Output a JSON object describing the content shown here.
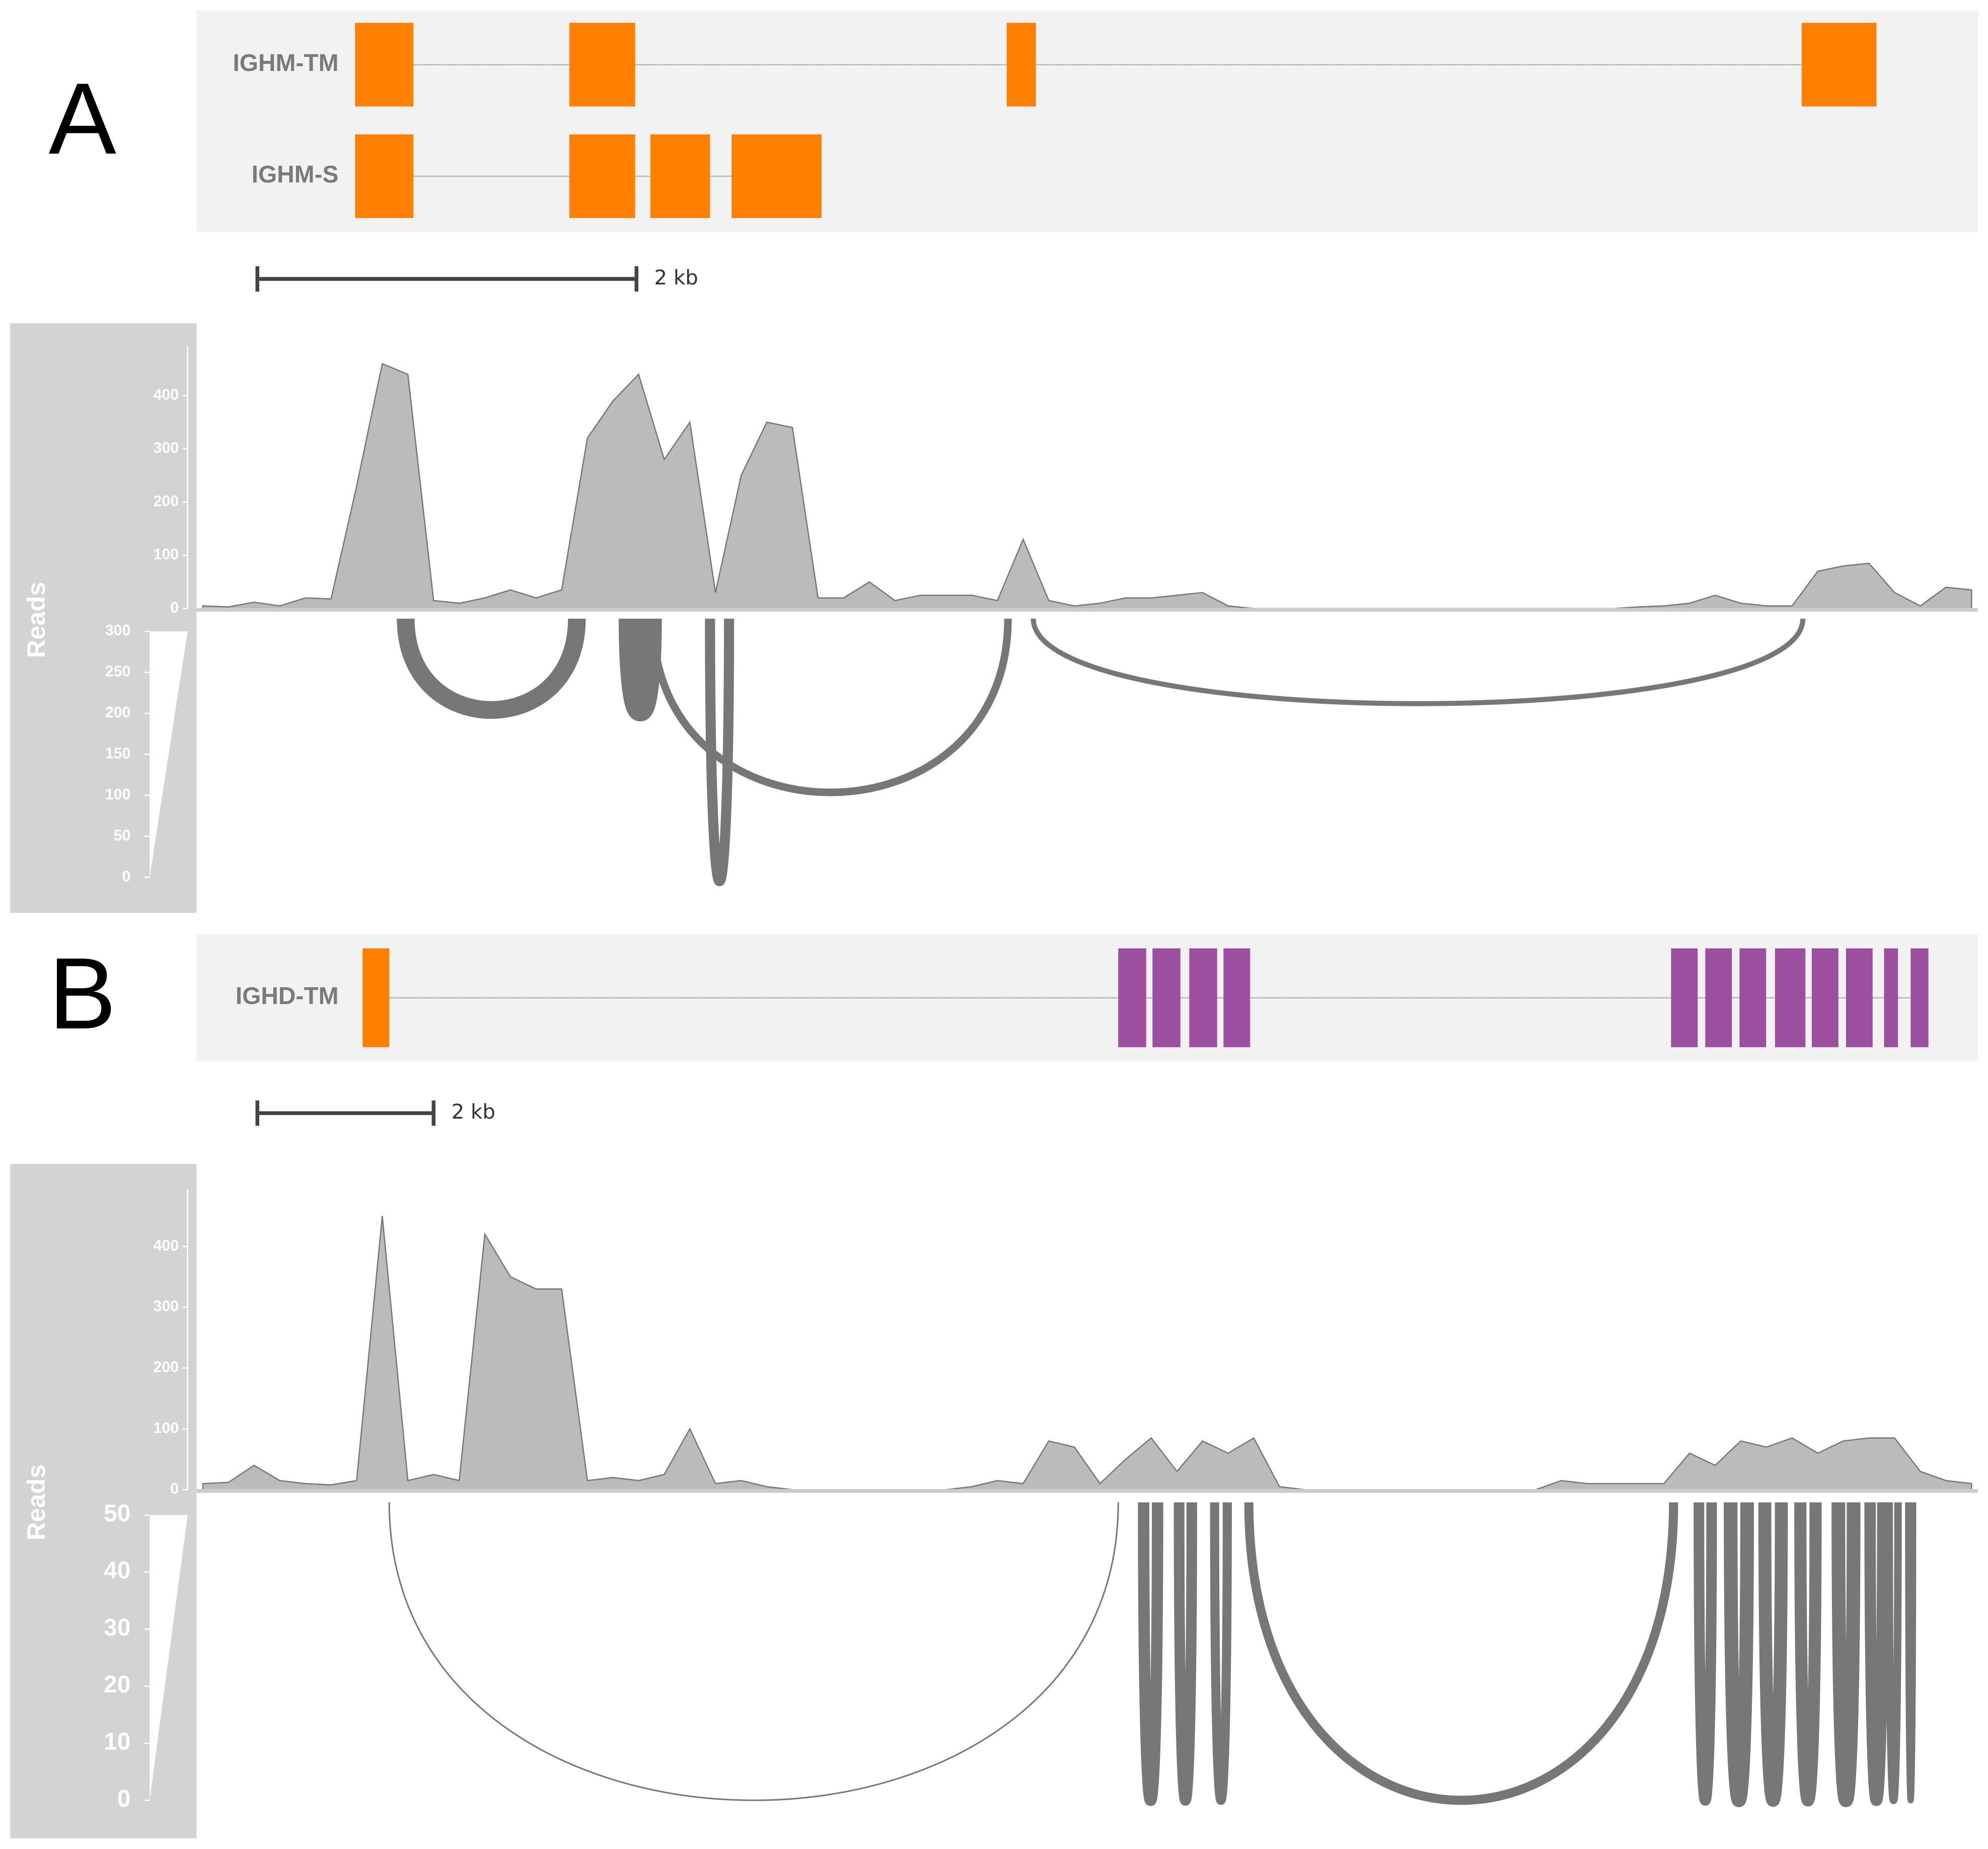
{
  "chart_data": [
    {
      "type": "sashimi",
      "title": "A",
      "transcripts": [
        "IGHM-TM",
        "IGHM-S"
      ],
      "scale_label": "2 kb",
      "ylabel": "Reads",
      "ylim": [
        0,
        493
      ],
      "yticks": [
        0,
        100,
        200,
        300,
        400
      ],
      "values": [
        5,
        3,
        12,
        5,
        20,
        18,
        230,
        460,
        440,
        15,
        10,
        20,
        35,
        20,
        35,
        320,
        390,
        440,
        280,
        350,
        30,
        250,
        350,
        340,
        20,
        20,
        50,
        15,
        25,
        25,
        25,
        15,
        130,
        15,
        5,
        10,
        20,
        20,
        25,
        30,
        5,
        0,
        0,
        0,
        0,
        0,
        0,
        0,
        0,
        0,
        0,
        0,
        0,
        0,
        0,
        0,
        3,
        5,
        10,
        25,
        10,
        5,
        5,
        70,
        80,
        85,
        30,
        5,
        40,
        35
      ],
      "junction_ylim": [
        0,
        300
      ],
      "junction_yticks": [
        0,
        50,
        100,
        150,
        200,
        250,
        300
      ],
      "junctions": [
        140,
        180,
        60,
        80,
        40
      ]
    },
    {
      "type": "sashimi",
      "title": "B",
      "transcripts": [
        "IGHD-TM"
      ],
      "scale_label": "2 kb",
      "ylabel": "Reads",
      "ylim": [
        0,
        494
      ],
      "yticks": [
        0,
        100,
        200,
        300,
        400
      ],
      "values": [
        10,
        12,
        40,
        15,
        10,
        8,
        15,
        450,
        15,
        25,
        15,
        420,
        350,
        330,
        330,
        15,
        20,
        15,
        25,
        100,
        10,
        15,
        5,
        0,
        0,
        0,
        0,
        0,
        0,
        0,
        5,
        15,
        10,
        80,
        70,
        10,
        50,
        85,
        30,
        80,
        60,
        85,
        5,
        0,
        0,
        0,
        0,
        0,
        0,
        0,
        0,
        0,
        0,
        15,
        10,
        10,
        10,
        10,
        60,
        40,
        80,
        70,
        85,
        60,
        80,
        85,
        85,
        30,
        15,
        10
      ],
      "junction_ylim": [
        0,
        50
      ],
      "junction_yticks": [
        0,
        10,
        20,
        30,
        40,
        50
      ],
      "junctions": [
        2,
        15,
        14,
        12,
        12,
        14,
        18,
        17,
        16,
        18,
        15,
        10,
        8
      ]
    }
  ]
}
